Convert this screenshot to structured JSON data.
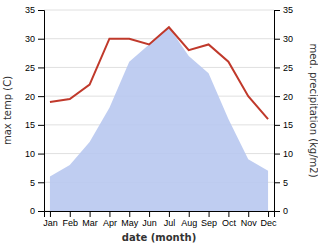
{
  "chart_data": {
    "type": "line",
    "categories": [
      "Jan",
      "Feb",
      "Mar",
      "Apr",
      "May",
      "Jun",
      "Jul",
      "Aug",
      "Sep",
      "Oct",
      "Nov",
      "Dec"
    ],
    "xlabel": "date (month)",
    "ylabel": "max temp (C)",
    "y2label": "med. precipitation (kg/m2)",
    "ylim": [
      0,
      35
    ],
    "yticks": [
      0,
      5,
      10,
      15,
      20,
      25,
      30,
      35
    ],
    "y2lim": [
      0,
      35
    ],
    "y2ticks": [
      0,
      5,
      10,
      15,
      20,
      25,
      30,
      35
    ],
    "grid": true,
    "series": [
      {
        "type": "area",
        "color": "#b8c8f0",
        "axis": "y2",
        "values": [
          6,
          8,
          12,
          18,
          26,
          29,
          32,
          27,
          24,
          16,
          9,
          7
        ]
      },
      {
        "type": "line",
        "color": "#c0392b",
        "values": [
          19,
          19.5,
          22,
          30,
          30,
          29,
          32,
          28,
          29,
          26,
          20,
          16
        ]
      }
    ]
  }
}
